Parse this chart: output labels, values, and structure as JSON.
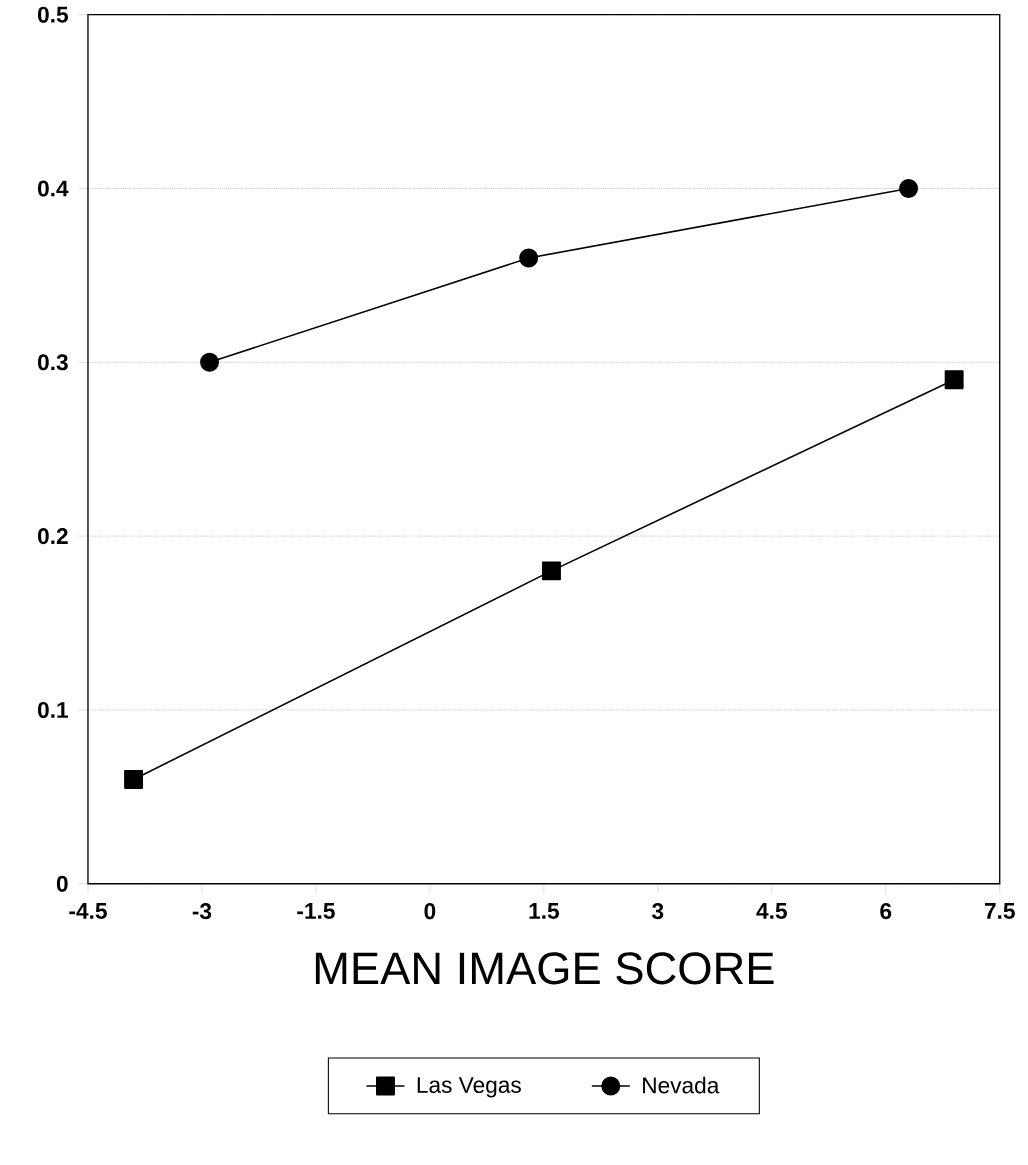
{
  "chart_data": {
    "type": "line",
    "xlabel": "MEAN IMAGE SCORE",
    "xlim": [
      -4.5,
      7.5
    ],
    "xticks": [
      -4.5,
      -3,
      -1.5,
      0,
      1.5,
      3,
      4.5,
      6,
      7.5
    ],
    "ylim": [
      0,
      0.5
    ],
    "yticks": [
      0,
      0.1,
      0.2,
      0.3,
      0.4,
      0.5
    ],
    "grid": "y",
    "legend": "bottom",
    "line_style": "solid",
    "series": [
      {
        "name": "Las Vegas",
        "color": "#000000",
        "marker": "square",
        "x": [
          -3.9,
          1.6,
          6.9
        ],
        "values": [
          0.06,
          0.18,
          0.29
        ]
      },
      {
        "name": "Nevada",
        "color": "#000000",
        "marker": "circle",
        "x": [
          -2.9,
          1.3,
          6.3
        ],
        "values": [
          0.3,
          0.36,
          0.4
        ]
      }
    ]
  }
}
